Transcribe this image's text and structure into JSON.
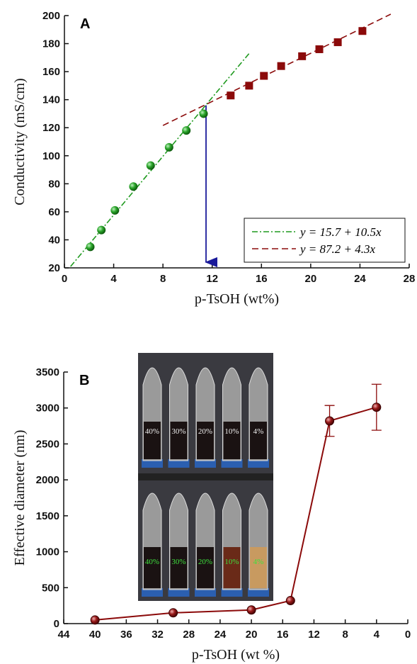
{
  "chart_data": [
    {
      "type": "scatter",
      "panel_label": "A",
      "x_label": "p-TsOH (wt%)",
      "y_label": "Conductivity (mS/cm)",
      "xlim": [
        0,
        28
      ],
      "xticks": [
        0,
        4,
        8,
        12,
        16,
        20,
        24,
        28
      ],
      "ylim": [
        20,
        200
      ],
      "yticks": [
        20,
        40,
        60,
        80,
        100,
        120,
        140,
        160,
        180,
        200
      ],
      "series": [
        {
          "color": "#1f9a1f",
          "marker": "circle",
          "x": [
            2.1,
            3.0,
            4.1,
            5.6,
            7.0,
            8.5,
            9.9,
            11.3
          ],
          "values": [
            35,
            47,
            61,
            78,
            93,
            106,
            118,
            130
          ]
        },
        {
          "color": "#8b0a0a",
          "marker": "square",
          "x": [
            13.5,
            15.0,
            16.2,
            17.6,
            19.3,
            20.7,
            22.2,
            24.2
          ],
          "values": [
            143,
            150,
            157,
            164,
            171,
            176,
            181,
            189
          ]
        }
      ],
      "fit_lines": [
        {
          "name": "y = 15.7 + 10.5x",
          "color": "#1f9a1f",
          "dash": "8 3 2 3",
          "x": [
            0.5,
            15
          ],
          "values": [
            21,
            173
          ]
        },
        {
          "name": "y = 87.2 + 4.3x",
          "color": "#8b0a0a",
          "dash": "9 5",
          "x": [
            8,
            26.5
          ],
          "values": [
            121.6,
            201
          ]
        }
      ],
      "arrow": {
        "color": "#1a1a9a",
        "x": 11.5,
        "y_start": 136,
        "y_end": 20
      }
    },
    {
      "type": "line",
      "panel_label": "B",
      "x_label": "p-TsOH (wt %)",
      "y_label": "Effective diameter (nm)",
      "xlim": [
        44,
        0
      ],
      "xticks": [
        44,
        40,
        36,
        32,
        28,
        24,
        20,
        16,
        12,
        8,
        4,
        0
      ],
      "ylim": [
        0,
        3500
      ],
      "yticks": [
        0,
        500,
        1000,
        1500,
        2000,
        2500,
        3000,
        3500
      ],
      "series": [
        {
          "color": "#8b0a0a",
          "marker": "circle",
          "x": [
            40,
            30,
            20,
            15,
            10,
            4
          ],
          "values": [
            50,
            150,
            190,
            320,
            2820,
            3010
          ],
          "errors": [
            null,
            null,
            null,
            null,
            215,
            320
          ]
        }
      ],
      "inset_labels_top": [
        "40%",
        "30%",
        "20%",
        "10%",
        "4%"
      ],
      "inset_labels_bottom": [
        "40%",
        "30%",
        "20%",
        "10%",
        "4%"
      ]
    }
  ]
}
